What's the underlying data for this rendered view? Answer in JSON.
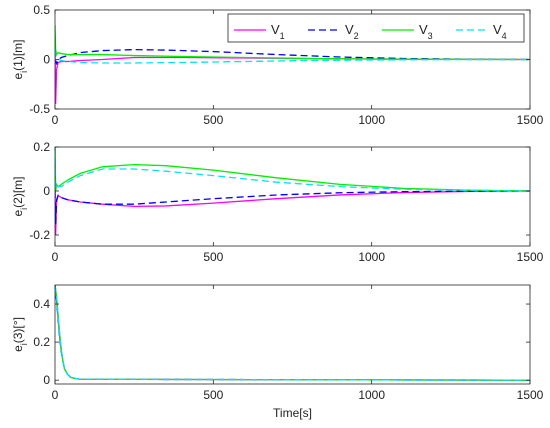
{
  "chart_data": [
    {
      "type": "line",
      "ylabel": "e_i(1)[m]",
      "ylabel_main": "e",
      "ylabel_sub": "i",
      "ylabel_rest": "(1)[m]",
      "xlim": [
        0,
        1500
      ],
      "ylim": [
        -0.5,
        0.5
      ],
      "xticks": [
        0,
        500,
        1000,
        1500
      ],
      "xtick_labels": [
        "0",
        "500",
        "1000",
        "1500"
      ],
      "yticks": [
        -0.5,
        0,
        0.5
      ],
      "ytick_labels": [
        "-0.5",
        "0",
        "0.5"
      ],
      "grid": false,
      "legend": {
        "placement": "top-right",
        "entries": [
          {
            "main": "V",
            "sub": "1"
          },
          {
            "main": "V",
            "sub": "2"
          },
          {
            "main": "V",
            "sub": "3"
          },
          {
            "main": "V",
            "sub": "4"
          }
        ]
      },
      "series": [
        {
          "name": "V1",
          "color": "#ff00ff",
          "dash": "solid",
          "x": [
            0,
            2,
            5,
            10,
            20,
            40,
            80,
            150,
            250,
            400,
            600,
            800,
            1000,
            1200,
            1500
          ],
          "y": [
            0.05,
            -0.45,
            -0.1,
            -0.03,
            -0.02,
            -0.02,
            -0.01,
            0.0,
            0.02,
            0.02,
            0.015,
            0.01,
            0.005,
            0.002,
            0.0
          ]
        },
        {
          "name": "V2",
          "color": "#0000ff",
          "dash": "dashed",
          "x": [
            0,
            2,
            5,
            10,
            20,
            40,
            80,
            150,
            250,
            350,
            500,
            700,
            900,
            1100,
            1300,
            1500
          ],
          "y": [
            0.1,
            0.0,
            -0.05,
            0.0,
            0.02,
            0.04,
            0.07,
            0.09,
            0.1,
            0.095,
            0.08,
            0.05,
            0.025,
            0.01,
            0.003,
            0.0
          ]
        },
        {
          "name": "V3",
          "color": "#00ee00",
          "dash": "solid",
          "x": [
            0,
            2,
            5,
            10,
            20,
            40,
            80,
            150,
            250,
            400,
            600,
            800,
            1000,
            1200,
            1500
          ],
          "y": [
            0.35,
            0.1,
            0.05,
            0.07,
            0.06,
            0.05,
            0.05,
            0.05,
            0.04,
            0.03,
            0.02,
            0.01,
            0.005,
            0.002,
            0.0
          ]
        },
        {
          "name": "V4",
          "color": "#00e5ee",
          "dash": "dashed",
          "x": [
            0,
            2,
            5,
            10,
            20,
            40,
            80,
            150,
            250,
            400,
            600,
            800,
            1000,
            1200,
            1500
          ],
          "y": [
            0.1,
            0.05,
            0.02,
            0.0,
            -0.01,
            -0.02,
            -0.03,
            -0.035,
            -0.035,
            -0.03,
            -0.02,
            -0.01,
            -0.005,
            -0.002,
            0.0
          ]
        }
      ]
    },
    {
      "type": "line",
      "ylabel": "e_i(2)[m]",
      "ylabel_main": "e",
      "ylabel_sub": "i",
      "ylabel_rest": "(2)[m]",
      "xlim": [
        0,
        1500
      ],
      "ylim": [
        -0.25,
        0.2
      ],
      "xticks": [
        0,
        500,
        1000,
        1500
      ],
      "xtick_labels": [
        "0",
        "500",
        "1000",
        "1500"
      ],
      "yticks": [
        -0.2,
        0,
        0.2
      ],
      "ytick_labels": [
        "-0.2",
        "0",
        "0.2"
      ],
      "grid": false,
      "series": [
        {
          "name": "V1",
          "color": "#ff00ff",
          "dash": "solid",
          "x": [
            0,
            2,
            5,
            10,
            20,
            40,
            80,
            150,
            250,
            350,
            500,
            700,
            900,
            1100,
            1300,
            1500
          ],
          "y": [
            0.0,
            -0.2,
            -0.05,
            -0.02,
            -0.03,
            -0.04,
            -0.05,
            -0.06,
            -0.07,
            -0.068,
            -0.055,
            -0.035,
            -0.018,
            -0.007,
            -0.002,
            0.0
          ]
        },
        {
          "name": "V2",
          "color": "#0000ff",
          "dash": "dashed",
          "x": [
            0,
            2,
            5,
            10,
            20,
            40,
            80,
            150,
            250,
            350,
            500,
            700,
            900,
            1100,
            1300,
            1500
          ],
          "y": [
            0.0,
            -0.15,
            -0.04,
            -0.02,
            -0.03,
            -0.04,
            -0.05,
            -0.06,
            -0.06,
            -0.05,
            -0.035,
            -0.018,
            -0.008,
            -0.003,
            -0.001,
            0.0
          ]
        },
        {
          "name": "V3",
          "color": "#00ee00",
          "dash": "solid",
          "x": [
            0,
            2,
            5,
            10,
            20,
            40,
            80,
            150,
            250,
            350,
            500,
            700,
            900,
            1100,
            1300,
            1500
          ],
          "y": [
            0.2,
            0.0,
            0.03,
            0.02,
            0.03,
            0.05,
            0.08,
            0.11,
            0.12,
            0.115,
            0.095,
            0.06,
            0.03,
            0.012,
            0.004,
            0.0
          ]
        },
        {
          "name": "V4",
          "color": "#00e5ee",
          "dash": "dashed",
          "x": [
            0,
            2,
            5,
            10,
            20,
            40,
            80,
            150,
            250,
            350,
            500,
            700,
            900,
            1100,
            1300,
            1500
          ],
          "y": [
            0.2,
            0.02,
            0.03,
            0.02,
            0.02,
            0.04,
            0.07,
            0.1,
            0.1,
            0.09,
            0.07,
            0.04,
            0.02,
            0.008,
            0.003,
            0.0
          ]
        }
      ]
    },
    {
      "type": "line",
      "ylabel": "e_i(3)[°]",
      "ylabel_main": "e",
      "ylabel_sub": "i",
      "ylabel_rest": "(3)[°]",
      "xlabel": "Time[s]",
      "xlim": [
        0,
        1500
      ],
      "ylim": [
        -0.02,
        0.5
      ],
      "xticks": [
        0,
        500,
        1000,
        1500
      ],
      "xtick_labels": [
        "0",
        "500",
        "1000",
        "1500"
      ],
      "yticks": [
        0,
        0.2,
        0.4
      ],
      "ytick_labels": [
        "0",
        "0.2",
        "0.4"
      ],
      "grid": false,
      "series": [
        {
          "name": "V1",
          "color": "#ff00ff",
          "dash": "solid",
          "x": [
            0,
            5,
            10,
            15,
            20,
            25,
            30,
            40,
            50,
            60,
            80,
            1500
          ],
          "y": [
            0.5,
            0.42,
            0.32,
            0.22,
            0.15,
            0.1,
            0.06,
            0.03,
            0.015,
            0.01,
            0.005,
            0.0
          ]
        },
        {
          "name": "V2",
          "color": "#0000ff",
          "dash": "dashed",
          "x": [
            0,
            5,
            10,
            15,
            20,
            25,
            30,
            40,
            50,
            60,
            80,
            1500
          ],
          "y": [
            0.5,
            0.42,
            0.32,
            0.22,
            0.15,
            0.1,
            0.06,
            0.03,
            0.015,
            0.01,
            0.005,
            0.0
          ]
        },
        {
          "name": "V3",
          "color": "#00ee00",
          "dash": "solid",
          "x": [
            0,
            5,
            10,
            15,
            20,
            25,
            30,
            40,
            50,
            60,
            80,
            1500
          ],
          "y": [
            0.5,
            0.44,
            0.34,
            0.24,
            0.16,
            0.1,
            0.06,
            0.03,
            0.015,
            0.01,
            0.005,
            0.0
          ]
        },
        {
          "name": "V4",
          "color": "#00e5ee",
          "dash": "dashed",
          "x": [
            0,
            5,
            10,
            15,
            20,
            25,
            30,
            40,
            50,
            60,
            80,
            1500
          ],
          "y": [
            0.5,
            0.44,
            0.34,
            0.24,
            0.16,
            0.1,
            0.06,
            0.03,
            0.015,
            0.01,
            0.005,
            0.0
          ]
        }
      ]
    }
  ]
}
